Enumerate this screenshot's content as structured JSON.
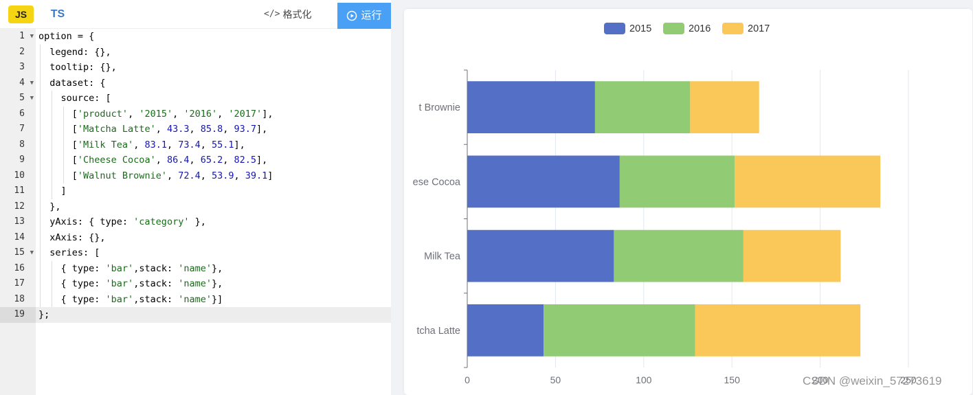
{
  "toolbar": {
    "tab_js": "JS",
    "tab_ts": "TS",
    "format_icon": "</>",
    "format_label": "格式化",
    "run_label": "运行"
  },
  "editor": {
    "active_line": 19,
    "folded_lines": [
      1,
      4,
      5,
      15
    ],
    "lines": [
      [
        [
          "p",
          "option = {"
        ]
      ],
      [
        [
          "p",
          "  legend: {},"
        ]
      ],
      [
        [
          "p",
          "  tooltip: {},"
        ]
      ],
      [
        [
          "p",
          "  dataset: {"
        ]
      ],
      [
        [
          "p",
          "    source: ["
        ]
      ],
      [
        [
          "p",
          "      ["
        ],
        [
          "s",
          "'product'"
        ],
        [
          "p",
          ", "
        ],
        [
          "s",
          "'2015'"
        ],
        [
          "p",
          ", "
        ],
        [
          "s",
          "'2016'"
        ],
        [
          "p",
          ", "
        ],
        [
          "s",
          "'2017'"
        ],
        [
          "p",
          "],"
        ]
      ],
      [
        [
          "p",
          "      ["
        ],
        [
          "s",
          "'Matcha Latte'"
        ],
        [
          "p",
          ", "
        ],
        [
          "n",
          "43.3"
        ],
        [
          "p",
          ", "
        ],
        [
          "n",
          "85.8"
        ],
        [
          "p",
          ", "
        ],
        [
          "n",
          "93.7"
        ],
        [
          "p",
          "],"
        ]
      ],
      [
        [
          "p",
          "      ["
        ],
        [
          "s",
          "'Milk Tea'"
        ],
        [
          "p",
          ", "
        ],
        [
          "n",
          "83.1"
        ],
        [
          "p",
          ", "
        ],
        [
          "n",
          "73.4"
        ],
        [
          "p",
          ", "
        ],
        [
          "n",
          "55.1"
        ],
        [
          "p",
          "],"
        ]
      ],
      [
        [
          "p",
          "      ["
        ],
        [
          "s",
          "'Cheese Cocoa'"
        ],
        [
          "p",
          ", "
        ],
        [
          "n",
          "86.4"
        ],
        [
          "p",
          ", "
        ],
        [
          "n",
          "65.2"
        ],
        [
          "p",
          ", "
        ],
        [
          "n",
          "82.5"
        ],
        [
          "p",
          "],"
        ]
      ],
      [
        [
          "p",
          "      ["
        ],
        [
          "s",
          "'Walnut Brownie'"
        ],
        [
          "p",
          ", "
        ],
        [
          "n",
          "72.4"
        ],
        [
          "p",
          ", "
        ],
        [
          "n",
          "53.9"
        ],
        [
          "p",
          ", "
        ],
        [
          "n",
          "39.1"
        ],
        [
          "p",
          "]"
        ]
      ],
      [
        [
          "p",
          "    ]"
        ]
      ],
      [
        [
          "p",
          "  },"
        ]
      ],
      [
        [
          "p",
          "  yAxis: { type: "
        ],
        [
          "s",
          "'category'"
        ],
        [
          "p",
          " },"
        ]
      ],
      [
        [
          "p",
          "  xAxis: {},"
        ]
      ],
      [
        [
          "p",
          "  series: ["
        ]
      ],
      [
        [
          "p",
          "    { type: "
        ],
        [
          "s",
          "'bar'"
        ],
        [
          "p",
          ",stack: "
        ],
        [
          "s",
          "'name'"
        ],
        [
          "p",
          "},"
        ]
      ],
      [
        [
          "p",
          "    { type: "
        ],
        [
          "s",
          "'bar'"
        ],
        [
          "p",
          ",stack: "
        ],
        [
          "s",
          "'name'"
        ],
        [
          "p",
          "},"
        ]
      ],
      [
        [
          "p",
          "    { type: "
        ],
        [
          "s",
          "'bar'"
        ],
        [
          "p",
          ",stack: "
        ],
        [
          "s",
          "'name'"
        ],
        [
          "p",
          "}]"
        ]
      ],
      [
        [
          "p",
          "};"
        ]
      ]
    ]
  },
  "chart_data": {
    "type": "bar",
    "orientation": "horizontal",
    "stacked": true,
    "categories": [
      "Matcha Latte",
      "Milk Tea",
      "Cheese Cocoa",
      "Walnut Brownie"
    ],
    "category_labels_visible": [
      "tcha Latte",
      "Milk Tea",
      "ese Cocoa",
      "t Brownie"
    ],
    "series": [
      {
        "name": "2015",
        "color": "#5470c6",
        "values": [
          43.3,
          83.1,
          86.4,
          72.4
        ]
      },
      {
        "name": "2016",
        "color": "#91cc75",
        "values": [
          85.8,
          73.4,
          65.2,
          53.9
        ]
      },
      {
        "name": "2017",
        "color": "#fac858",
        "values": [
          93.7,
          55.1,
          82.5,
          39.1
        ]
      }
    ],
    "xlim": [
      0,
      250
    ],
    "x_ticks": [
      0,
      50,
      100,
      150,
      200,
      250
    ],
    "x_tick_labels": [
      "0",
      "50",
      "100",
      "150",
      "200",
      "250"
    ],
    "grid": true,
    "legend_position": "top-center"
  },
  "watermark": "CSDN @weixin_57273619"
}
